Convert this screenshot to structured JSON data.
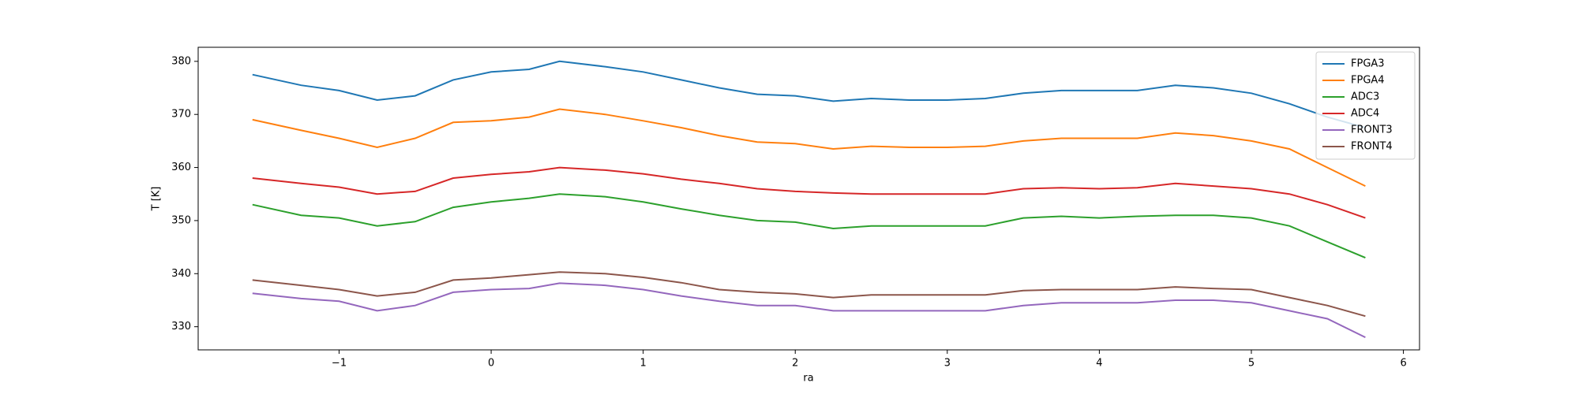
{
  "chart_data": {
    "type": "line",
    "xlabel": "ra",
    "ylabel": "T [K]",
    "x": [
      -1.57,
      -1.25,
      -1.0,
      -0.75,
      -0.5,
      -0.25,
      0,
      0.25,
      0.45,
      0.75,
      1.0,
      1.25,
      1.5,
      1.75,
      2.0,
      2.25,
      2.5,
      2.75,
      3.0,
      3.25,
      3.5,
      3.75,
      4.0,
      4.25,
      4.5,
      4.75,
      5.0,
      5.25,
      5.5,
      5.75
    ],
    "series": [
      {
        "name": "FPGA3",
        "color": "#1f77b4",
        "values": [
          377.5,
          375.5,
          374.5,
          372.7,
          373.5,
          376.5,
          378,
          378.5,
          380,
          379,
          378,
          376.5,
          375,
          373.8,
          373.5,
          372.5,
          373,
          372.7,
          372.7,
          373,
          374,
          374.5,
          374.5,
          374.5,
          375.5,
          375,
          374,
          372,
          369.5,
          367.5
        ]
      },
      {
        "name": "FPGA4",
        "color": "#ff7f0e",
        "values": [
          369,
          367,
          365.5,
          363.8,
          365.5,
          368.5,
          368.8,
          369.5,
          371,
          370,
          368.8,
          367.5,
          366,
          364.8,
          364.5,
          363.5,
          364,
          363.8,
          363.8,
          364,
          365,
          365.5,
          365.5,
          365.5,
          366.5,
          366,
          365,
          363.5,
          360,
          356.5
        ]
      },
      {
        "name": "ADC3",
        "color": "#2ca02c",
        "values": [
          353,
          351,
          350.5,
          349,
          349.8,
          352.5,
          353.5,
          354.2,
          355,
          354.5,
          353.5,
          352.2,
          351,
          350,
          349.7,
          348.5,
          349,
          349,
          349,
          349,
          350.5,
          350.8,
          350.5,
          350.8,
          351,
          351,
          350.5,
          349,
          346,
          343
        ]
      },
      {
        "name": "ADC4",
        "color": "#d62728",
        "values": [
          358,
          357,
          356.3,
          355,
          355.5,
          358,
          358.7,
          359.2,
          360,
          359.5,
          358.8,
          357.8,
          357,
          356,
          355.5,
          355.2,
          355,
          355,
          355,
          355,
          356,
          356.2,
          356,
          356.2,
          357,
          356.5,
          356,
          355,
          353,
          350.5
        ]
      },
      {
        "name": "FRONT3",
        "color": "#9467bd",
        "values": [
          336.3,
          335.3,
          334.8,
          333,
          334,
          336.5,
          337,
          337.2,
          338.2,
          337.8,
          337,
          335.8,
          334.8,
          334,
          334,
          333,
          333,
          333,
          333,
          333,
          334,
          334.5,
          334.5,
          334.5,
          335,
          335,
          334.5,
          333,
          331.5,
          328
        ]
      },
      {
        "name": "FRONT4",
        "color": "#8c564b",
        "values": [
          338.8,
          337.8,
          337,
          335.8,
          336.5,
          338.8,
          339.2,
          339.8,
          340.3,
          340,
          339.3,
          338.3,
          337,
          336.5,
          336.2,
          335.5,
          336,
          336,
          336,
          336,
          336.8,
          337,
          337,
          337,
          337.5,
          337.2,
          337,
          335.5,
          334,
          332
        ]
      }
    ],
    "xlim": [
      -1.927,
      6.106
    ],
    "xticks": [
      {
        "value": -1,
        "label": "−1"
      },
      0,
      1,
      2,
      3,
      4,
      5,
      6
    ],
    "ylim": [
      325.64,
      382.65
    ],
    "yticks": [
      330,
      340,
      350,
      360,
      370,
      380
    ],
    "legend": "upper right"
  }
}
